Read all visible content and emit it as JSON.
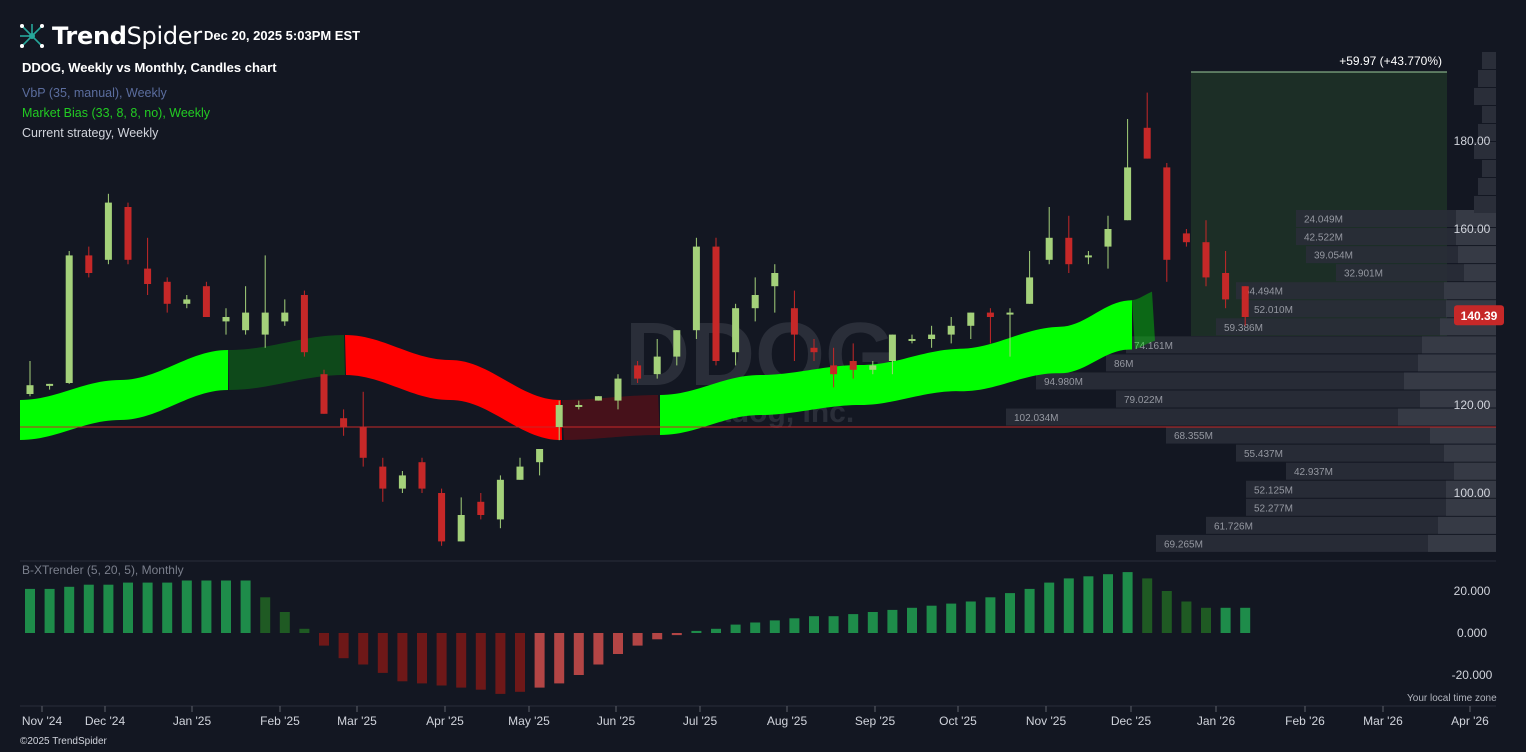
{
  "header": {
    "brand_bold": "Trend",
    "brand_light": "Spider",
    "timestamp": "Dec 20, 2025 5:03PM EST",
    "chart_title": "DDOG, Weekly vs Monthly, Candles chart",
    "watermark": "DDOG",
    "watermark_sub": "Datadog, Inc."
  },
  "indicators": [
    {
      "label": "VbP (35, manual), Weekly",
      "color": "#5b6d9e"
    },
    {
      "label": "Market Bias (33, 8, 8, no), Weekly",
      "color": "#22cc22"
    },
    {
      "label": "Current strategy, Weekly",
      "color": "#d1d4dc"
    }
  ],
  "oscillator": {
    "label": "B-XTrender (5, 20, 5), Monthly"
  },
  "footer": {
    "copyright": "©2025 TrendSpider",
    "timezone": "Your local time zone"
  },
  "colors": {
    "background": "#131722",
    "up_candle": "#a4d17a",
    "down_candle": "#c62828",
    "bias_bull": "#00ff00",
    "bias_bear": "#ff0000",
    "price_badge": "#c62828"
  },
  "chart_data": {
    "type": "candlestick",
    "price_axis": {
      "ticks": [
        "100.00",
        "120.00",
        "160.00",
        "180.00"
      ],
      "range": [
        88,
        195
      ]
    },
    "time_axis": {
      "ticks": [
        "Nov '24",
        "Dec '24",
        "Jan '25",
        "Feb '25",
        "Mar '25",
        "Apr '25",
        "May '25",
        "Jun '25",
        "Jul '25",
        "Aug '25",
        "Sep '25",
        "Oct '25",
        "Nov '25",
        "Dec '25",
        "Jan '26",
        "Feb '26",
        "Mar '26",
        "Apr '26"
      ]
    },
    "last_price": "140.39",
    "strategy_result": "+59.97 (+43.770%)",
    "horizontal_line": 120.1,
    "candles": [
      [
        122.5,
        124.5,
        122,
        130
      ],
      [
        124.5,
        124.8,
        123.5,
        124.8
      ],
      [
        125,
        154,
        124.8,
        155
      ],
      [
        154,
        150,
        149,
        156
      ],
      [
        153,
        166,
        152,
        168
      ],
      [
        165,
        153,
        152,
        166
      ],
      [
        151,
        147.5,
        145,
        158
      ],
      [
        148,
        143,
        141,
        149
      ],
      [
        143,
        144,
        142,
        145
      ],
      [
        147,
        140,
        140,
        148
      ],
      [
        139,
        140,
        136,
        142
      ],
      [
        137,
        141,
        136,
        147
      ],
      [
        136,
        141,
        133,
        154
      ],
      [
        139,
        141,
        138,
        144
      ],
      [
        145,
        132,
        131,
        146
      ],
      [
        127,
        118,
        118,
        128
      ],
      [
        117,
        115,
        113,
        119
      ],
      [
        115,
        108,
        106,
        123
      ],
      [
        106,
        101,
        98,
        108
      ],
      [
        101,
        104,
        100,
        105
      ],
      [
        107,
        101,
        100,
        108
      ],
      [
        100,
        89,
        88,
        101
      ],
      [
        89,
        95,
        89,
        99
      ],
      [
        98,
        95,
        94,
        100
      ],
      [
        94,
        103,
        92,
        104
      ],
      [
        103,
        106,
        103,
        108
      ],
      [
        107,
        110,
        104,
        110
      ],
      [
        115,
        120,
        112,
        121
      ],
      [
        120,
        120,
        119,
        121
      ],
      [
        121,
        122,
        121,
        122
      ],
      [
        121,
        126,
        119,
        127
      ],
      [
        129,
        126,
        125,
        130
      ],
      [
        127,
        131,
        126,
        135
      ],
      [
        131,
        137,
        129,
        137
      ],
      [
        137,
        156,
        135,
        158
      ],
      [
        156,
        130,
        129,
        158
      ],
      [
        132,
        142,
        129,
        143
      ],
      [
        142,
        145,
        139,
        149
      ],
      [
        147,
        150,
        141,
        152
      ],
      [
        142,
        136,
        130,
        146
      ],
      [
        133,
        132,
        130,
        135
      ],
      [
        129,
        127,
        124,
        133
      ],
      [
        130,
        128,
        126,
        134
      ],
      [
        128,
        129,
        127,
        130
      ],
      [
        130,
        136,
        127,
        136
      ],
      [
        135,
        135,
        134,
        136
      ],
      [
        135,
        136,
        133,
        138
      ],
      [
        136,
        138,
        134,
        140
      ],
      [
        138,
        141,
        135,
        141
      ],
      [
        141,
        140,
        134,
        142
      ],
      [
        141,
        141,
        131,
        142
      ],
      [
        143,
        149,
        143,
        155
      ],
      [
        153,
        158,
        152,
        165
      ],
      [
        158,
        152,
        150,
        163
      ],
      [
        154,
        154,
        152,
        155
      ],
      [
        156,
        160,
        151,
        163
      ],
      [
        162,
        174,
        162,
        185
      ],
      [
        183,
        176,
        176,
        191
      ],
      [
        174,
        153,
        148,
        175
      ],
      [
        159,
        157,
        156,
        160
      ],
      [
        157,
        149,
        147,
        162
      ],
      [
        150,
        144,
        142,
        155
      ],
      [
        147,
        140,
        138,
        147
      ]
    ],
    "volume_profile": [
      {
        "price": 158,
        "label": "24.049M"
      },
      {
        "price": 154,
        "label": "42.522M"
      },
      {
        "price": 150,
        "label": "39.054M"
      },
      {
        "price": 146,
        "label": "32.901M"
      },
      {
        "price": 142,
        "label": "54.494M"
      },
      {
        "price": 138,
        "label": "52.010M"
      },
      {
        "price": 134,
        "label": "59.386M"
      },
      {
        "price": 130,
        "label": "74.161M"
      },
      {
        "price": 126,
        "label": "86M"
      },
      {
        "price": 122,
        "label": "94.980M"
      },
      {
        "price": 118,
        "label": "79.022M"
      },
      {
        "price": 114,
        "label": "102.034M"
      },
      {
        "price": 110,
        "label": "68.355M"
      },
      {
        "price": 106,
        "label": "55.437M"
      },
      {
        "price": 102,
        "label": "42.937M"
      },
      {
        "price": 98,
        "label": "52.125M"
      },
      {
        "price": 94,
        "label": "52.277M"
      },
      {
        "price": 90,
        "label": "61.726M"
      },
      {
        "price": 86,
        "label": "69.265M"
      }
    ],
    "oscillator": {
      "name": "B-XTrender",
      "ticks": [
        "20.000",
        "0.000",
        "-20.000"
      ],
      "range": [
        -28,
        30
      ],
      "values": [
        21,
        21,
        22,
        23,
        23,
        24,
        24,
        24,
        25,
        25,
        25,
        25,
        17,
        10,
        2,
        -6,
        -12,
        -15,
        -19,
        -23,
        -24,
        -25,
        -26,
        -27,
        -29,
        -28,
        -26,
        -24,
        -20,
        -15,
        -10,
        -6,
        -3,
        -1,
        1,
        2,
        4,
        5,
        6,
        7,
        8,
        8,
        9,
        10,
        11,
        12,
        13,
        14,
        15,
        17,
        19,
        21,
        24,
        26,
        27,
        28,
        29,
        26,
        20,
        15,
        12,
        12,
        12
      ]
    }
  }
}
